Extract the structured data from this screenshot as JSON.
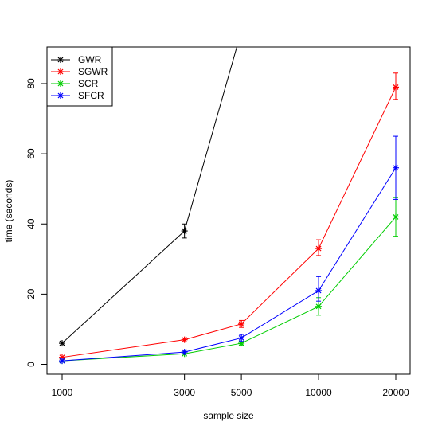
{
  "chart_data": {
    "type": "line",
    "title": "",
    "xlabel": "sample size",
    "ylabel": "time (seconds)",
    "x_scale": "log",
    "x": [
      1000,
      3000,
      5000,
      10000,
      20000
    ],
    "x_ticks": [
      "1000",
      "3000",
      "5000",
      "10000",
      "20000"
    ],
    "y_ticks": [
      "0",
      "20",
      "40",
      "60",
      "80"
    ],
    "ylim": [
      -3,
      90
    ],
    "grid": false,
    "legend_position": "top-left",
    "series": [
      {
        "name": "GWR",
        "color": "#000000",
        "values": [
          6,
          38,
          95,
          null,
          null
        ],
        "error_low": [
          null,
          36,
          null,
          null,
          null
        ],
        "error_high": [
          null,
          40,
          null,
          null,
          null
        ]
      },
      {
        "name": "SGWR",
        "color": "#ff0000",
        "values": [
          2,
          7,
          11.5,
          33,
          79
        ],
        "error_low": [
          null,
          null,
          10.5,
          31,
          75.5
        ],
        "error_high": [
          null,
          null,
          12.5,
          35.5,
          83
        ]
      },
      {
        "name": "SCR",
        "color": "#00cd00",
        "values": [
          1,
          3,
          6,
          16.5,
          42
        ],
        "error_low": [
          null,
          null,
          5.5,
          14,
          36.5
        ],
        "error_high": [
          null,
          null,
          6.5,
          19,
          47.5
        ]
      },
      {
        "name": "SFCR",
        "color": "#0000ff",
        "values": [
          1,
          3.5,
          7.5,
          21,
          56
        ],
        "error_low": [
          null,
          null,
          6.5,
          18,
          47
        ],
        "error_high": [
          null,
          null,
          8.5,
          25,
          65
        ]
      }
    ]
  }
}
